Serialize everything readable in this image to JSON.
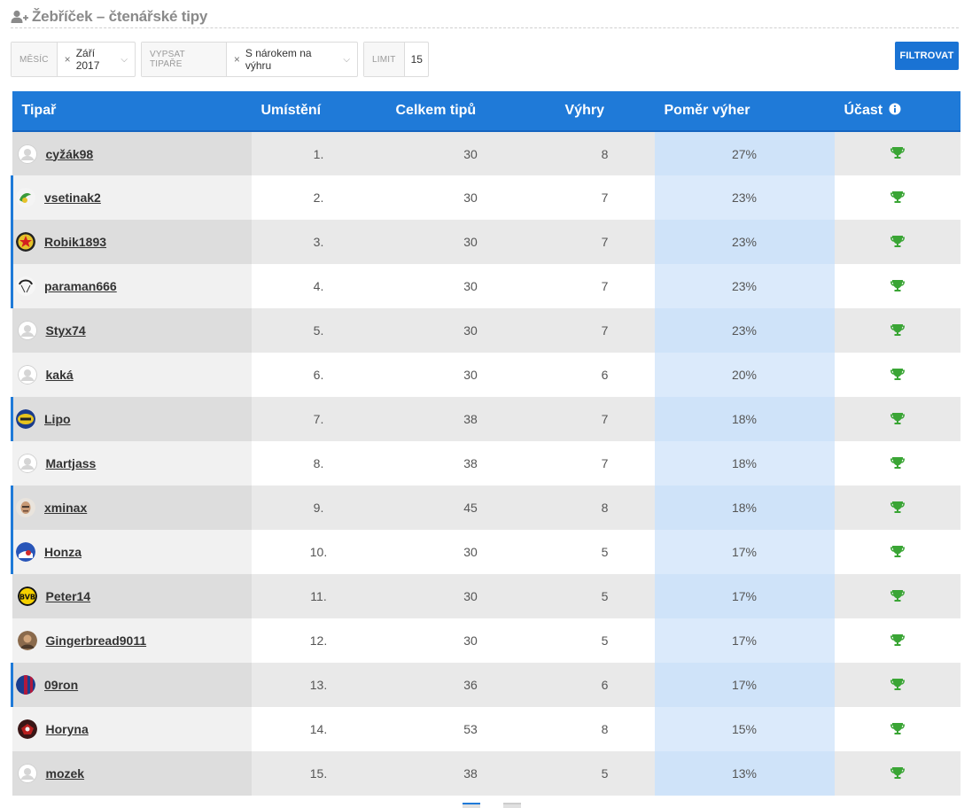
{
  "header": {
    "title": "Žebříček – čtenářské tipy",
    "icon": "user-plus-icon"
  },
  "filters": {
    "month": {
      "label": "Měsíc",
      "value": "Září 2017"
    },
    "tippers": {
      "label": "Vypsat tipaře",
      "value": "S nárokem na výhru"
    },
    "limit": {
      "label": "Limit",
      "value": "15"
    },
    "submit_label": "FILTROVAT"
  },
  "table": {
    "columns": [
      "Tipař",
      "Umístění",
      "Celkem tipů",
      "Výhry",
      "Poměr výher",
      "Účast"
    ],
    "info_icon": "info-icon",
    "rows": [
      {
        "name": "cyžák98",
        "rank": "1.",
        "total": "30",
        "wins": "8",
        "ratio": "27%",
        "avatar": "default"
      },
      {
        "name": "vsetinak2",
        "rank": "2.",
        "total": "30",
        "wins": "7",
        "ratio": "23%",
        "avatar": "green-logo"
      },
      {
        "name": "Robik1893",
        "rank": "3.",
        "total": "30",
        "wins": "7",
        "ratio": "23%",
        "avatar": "red-star"
      },
      {
        "name": "paraman666",
        "rank": "4.",
        "total": "30",
        "wins": "7",
        "ratio": "23%",
        "avatar": "parachute"
      },
      {
        "name": "Styx74",
        "rank": "5.",
        "total": "30",
        "wins": "7",
        "ratio": "23%",
        "avatar": "default"
      },
      {
        "name": "kaká",
        "rank": "6.",
        "total": "30",
        "wins": "6",
        "ratio": "20%",
        "avatar": "default"
      },
      {
        "name": "Lipo",
        "rank": "7.",
        "total": "38",
        "wins": "7",
        "ratio": "18%",
        "avatar": "yellow-badge"
      },
      {
        "name": "Martjass",
        "rank": "8.",
        "total": "38",
        "wins": "7",
        "ratio": "18%",
        "avatar": "default"
      },
      {
        "name": "xminax",
        "rank": "9.",
        "total": "45",
        "wins": "8",
        "ratio": "18%",
        "avatar": "face"
      },
      {
        "name": "Honza",
        "rank": "10.",
        "total": "30",
        "wins": "5",
        "ratio": "17%",
        "avatar": "blue-red"
      },
      {
        "name": "Peter14",
        "rank": "11.",
        "total": "30",
        "wins": "5",
        "ratio": "17%",
        "avatar": "bvb"
      },
      {
        "name": "Gingerbread9011",
        "rank": "12.",
        "total": "30",
        "wins": "5",
        "ratio": "17%",
        "avatar": "brown"
      },
      {
        "name": "09ron",
        "rank": "13.",
        "total": "36",
        "wins": "6",
        "ratio": "17%",
        "avatar": "barca"
      },
      {
        "name": "Horyna",
        "rank": "14.",
        "total": "53",
        "wins": "8",
        "ratio": "15%",
        "avatar": "dark-red"
      },
      {
        "name": "mozek",
        "rank": "15.",
        "total": "38",
        "wins": "5",
        "ratio": "13%",
        "avatar": "default"
      }
    ],
    "marked_rows": [
      1,
      2,
      3,
      6,
      8,
      9,
      12
    ],
    "participation_icon": "trophy-icon"
  },
  "colors": {
    "accent": "#1f7ad8",
    "trophy": "#3aa535",
    "ratio_column": "#cfe3f9"
  }
}
